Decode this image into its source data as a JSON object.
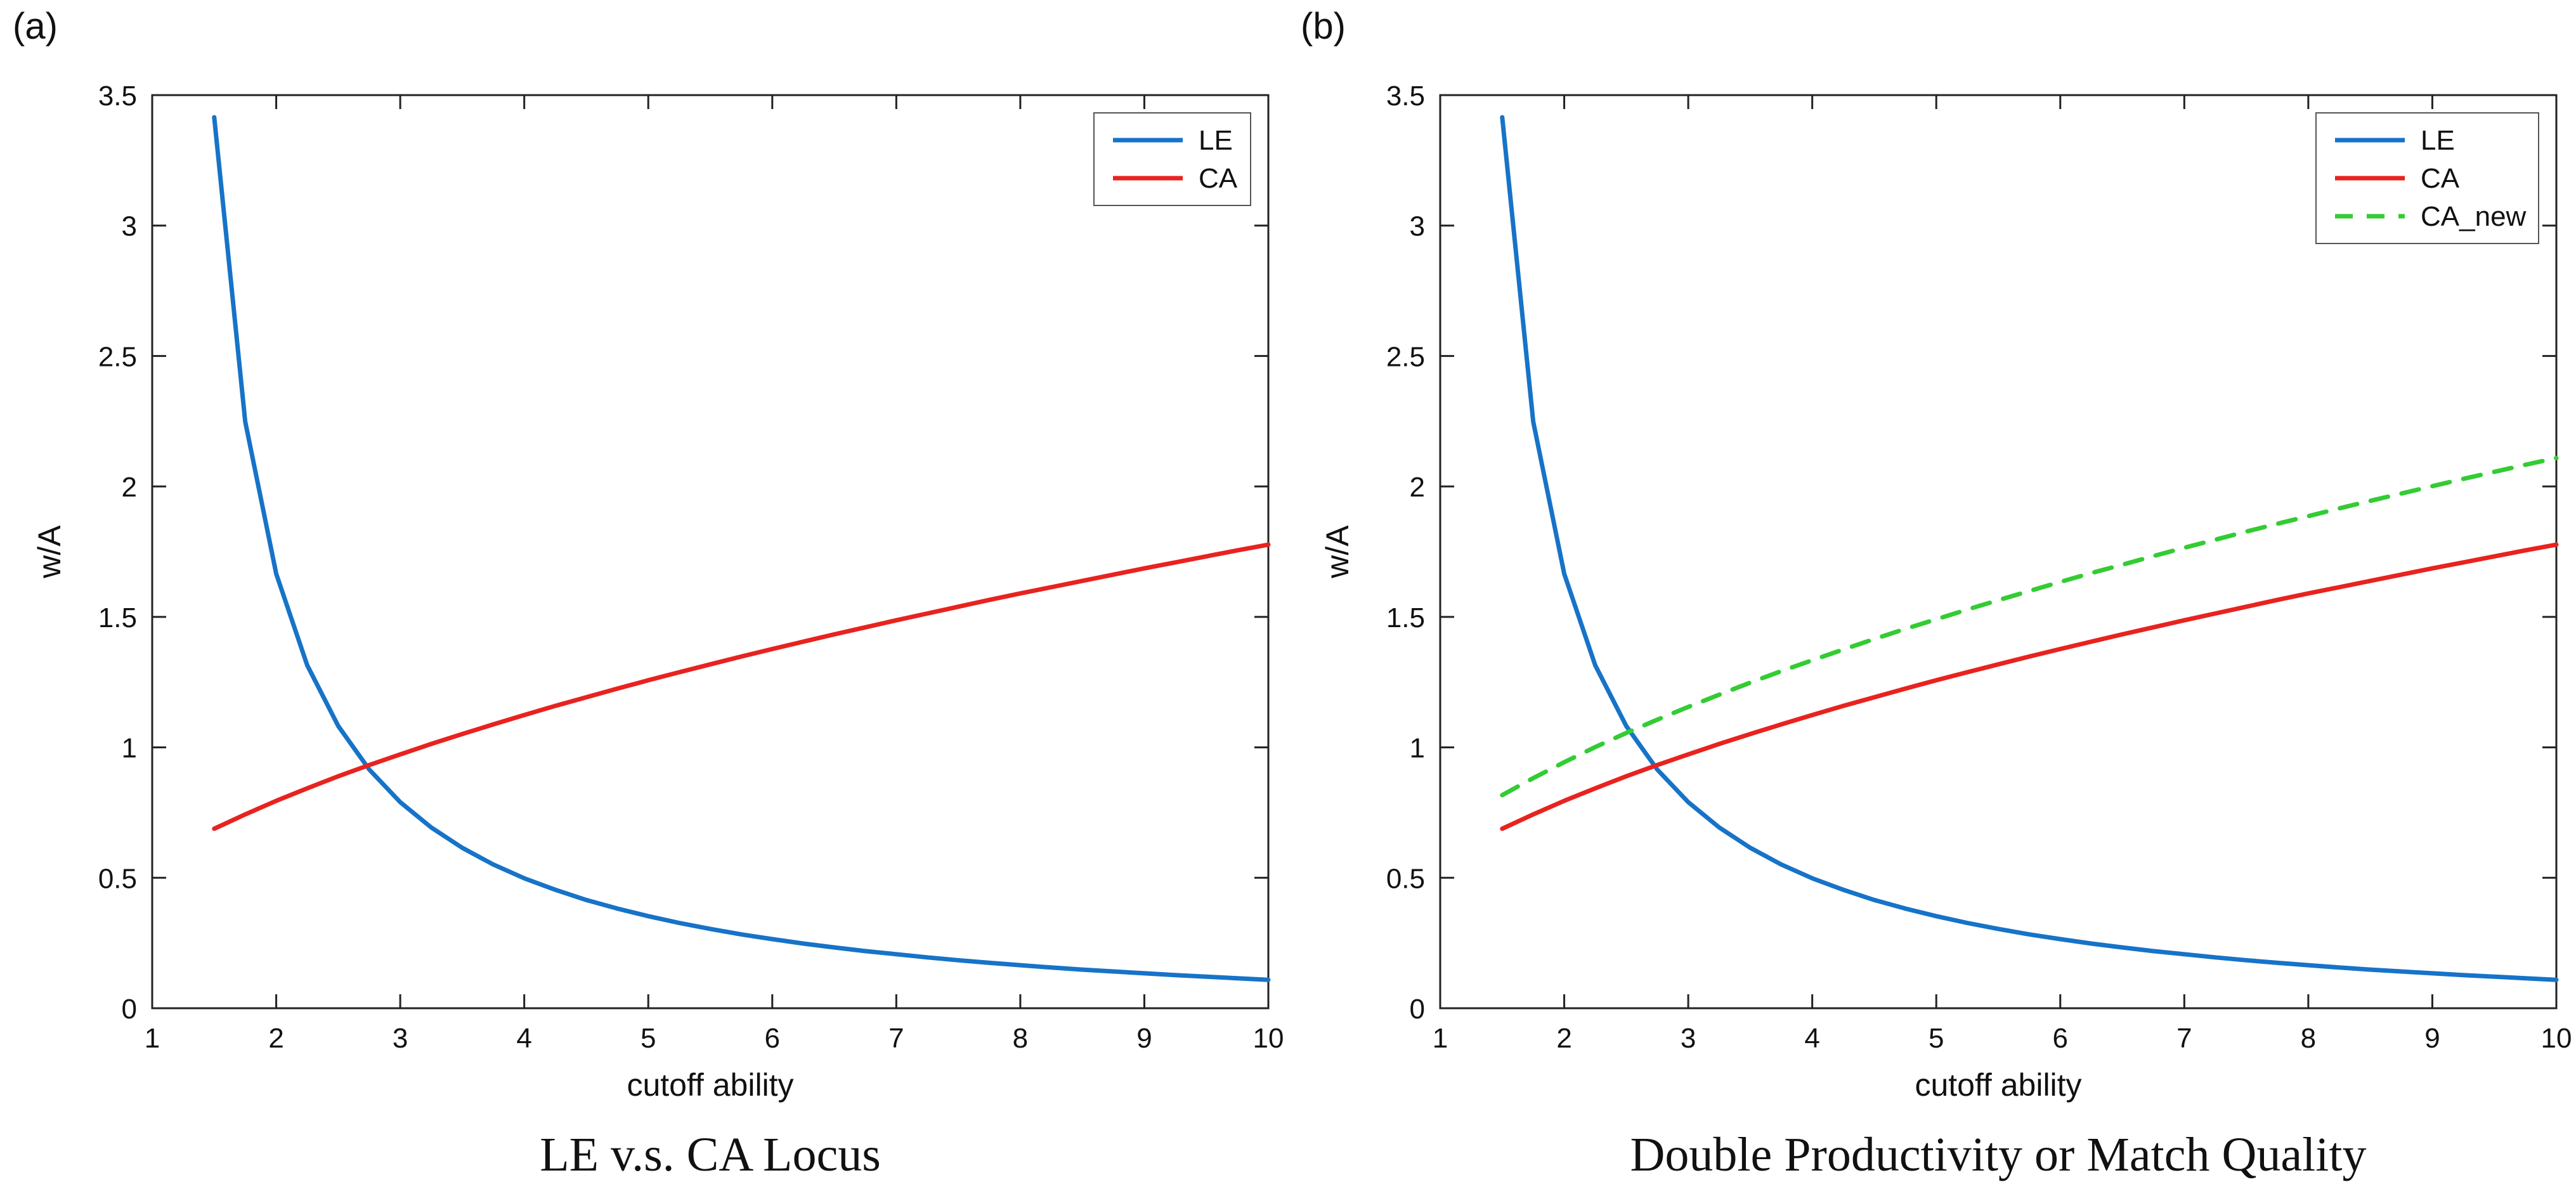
{
  "page": {
    "background": "#ffffff"
  },
  "panel_labels": [
    "(a)",
    "(b)"
  ],
  "chart_data": [
    {
      "type": "line",
      "panel": "a",
      "title": "LE v.s. CA Locus",
      "xlabel": "cutoff ability",
      "ylabel": "w/A",
      "xlim": [
        1,
        10
      ],
      "ylim": [
        0,
        3.5
      ],
      "xticks": [
        1,
        2,
        3,
        4,
        5,
        6,
        7,
        8,
        9,
        10
      ],
      "yticks": [
        0,
        0.5,
        1,
        1.5,
        2,
        2.5,
        3,
        3.5
      ],
      "grid": false,
      "legend_position": "top-right",
      "x": [
        1.5,
        1.75,
        2,
        2.25,
        2.5,
        2.75,
        3,
        3.25,
        3.5,
        3.75,
        4,
        4.25,
        4.5,
        4.75,
        5,
        5.25,
        5.5,
        5.75,
        6,
        6.25,
        6.5,
        6.75,
        7,
        7.25,
        7.5,
        7.75,
        8,
        8.25,
        8.5,
        8.75,
        9,
        9.25,
        9.5,
        9.75,
        10
      ],
      "series": [
        {
          "name": "LE",
          "color": "#1673c8",
          "style": "solid",
          "values": [
            3.415,
            2.248,
            1.665,
            1.315,
            1.082,
            0.915,
            0.79,
            0.693,
            0.615,
            0.551,
            0.498,
            0.454,
            0.415,
            0.382,
            0.353,
            0.327,
            0.304,
            0.283,
            0.265,
            0.248,
            0.233,
            0.219,
            0.207,
            0.195,
            0.184,
            0.174,
            0.165,
            0.156,
            0.148,
            0.141,
            0.134,
            0.127,
            0.121,
            0.115,
            0.109
          ]
        },
        {
          "name": "CA",
          "color": "#e8231f",
          "style": "solid",
          "values": [
            0.688,
            0.743,
            0.795,
            0.843,
            0.889,
            0.932,
            0.973,
            1.013,
            1.051,
            1.088,
            1.124,
            1.159,
            1.192,
            1.225,
            1.257,
            1.288,
            1.318,
            1.348,
            1.377,
            1.405,
            1.433,
            1.46,
            1.487,
            1.513,
            1.539,
            1.565,
            1.59,
            1.614,
            1.638,
            1.662,
            1.686,
            1.709,
            1.732,
            1.755,
            1.777
          ]
        }
      ]
    },
    {
      "type": "line",
      "panel": "b",
      "title": "Double Productivity or Match Quality",
      "xlabel": "cutoff ability",
      "ylabel": "w/A",
      "xlim": [
        1,
        10
      ],
      "ylim": [
        0,
        3.5
      ],
      "xticks": [
        1,
        2,
        3,
        4,
        5,
        6,
        7,
        8,
        9,
        10
      ],
      "yticks": [
        0,
        0.5,
        1,
        1.5,
        2,
        2.5,
        3,
        3.5
      ],
      "grid": false,
      "legend_position": "top-right",
      "x": [
        1.5,
        1.75,
        2,
        2.25,
        2.5,
        2.75,
        3,
        3.25,
        3.5,
        3.75,
        4,
        4.25,
        4.5,
        4.75,
        5,
        5.25,
        5.5,
        5.75,
        6,
        6.25,
        6.5,
        6.75,
        7,
        7.25,
        7.5,
        7.75,
        8,
        8.25,
        8.5,
        8.75,
        9,
        9.25,
        9.5,
        9.75,
        10
      ],
      "series": [
        {
          "name": "LE",
          "color": "#1673c8",
          "style": "solid",
          "values": [
            3.415,
            2.248,
            1.665,
            1.315,
            1.082,
            0.915,
            0.79,
            0.693,
            0.615,
            0.551,
            0.498,
            0.454,
            0.415,
            0.382,
            0.353,
            0.327,
            0.304,
            0.283,
            0.265,
            0.248,
            0.233,
            0.219,
            0.207,
            0.195,
            0.184,
            0.174,
            0.165,
            0.156,
            0.148,
            0.141,
            0.134,
            0.127,
            0.121,
            0.115,
            0.109
          ]
        },
        {
          "name": "CA",
          "color": "#e8231f",
          "style": "solid",
          "values": [
            0.688,
            0.743,
            0.795,
            0.843,
            0.889,
            0.932,
            0.973,
            1.013,
            1.051,
            1.088,
            1.124,
            1.159,
            1.192,
            1.225,
            1.257,
            1.288,
            1.318,
            1.348,
            1.377,
            1.405,
            1.433,
            1.46,
            1.487,
            1.513,
            1.539,
            1.565,
            1.59,
            1.614,
            1.638,
            1.662,
            1.686,
            1.709,
            1.732,
            1.755,
            1.777
          ]
        },
        {
          "name": "CA_new",
          "color": "#33cc33",
          "style": "dashed",
          "values": [
            0.817,
            0.882,
            0.943,
            1.001,
            1.055,
            1.106,
            1.155,
            1.202,
            1.248,
            1.292,
            1.334,
            1.375,
            1.415,
            1.454,
            1.491,
            1.528,
            1.564,
            1.599,
            1.634,
            1.668,
            1.7,
            1.733,
            1.765,
            1.796,
            1.827,
            1.857,
            1.886,
            1.916,
            1.945,
            1.973,
            2.001,
            2.029,
            2.056,
            2.083,
            2.109
          ]
        }
      ]
    }
  ]
}
